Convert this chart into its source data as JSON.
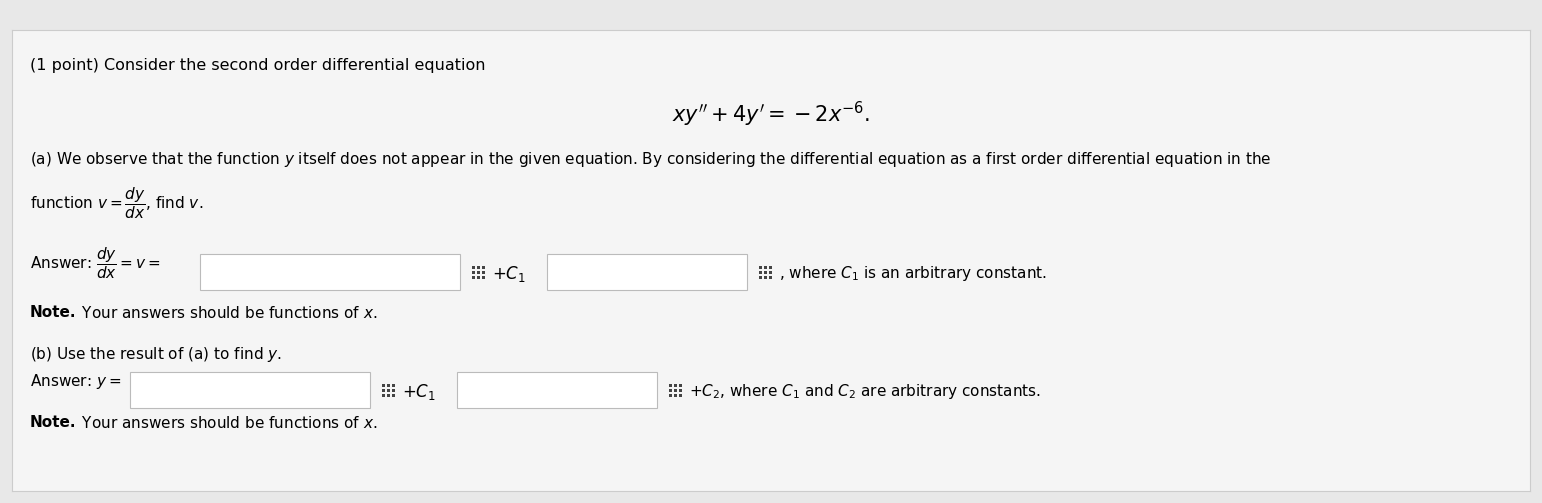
{
  "bg_color": "#e8e8e8",
  "panel_color": "#f5f5f5",
  "panel_border_color": "#cccccc",
  "text_color": "#000000",
  "input_box_color": "#ffffff",
  "input_box_border": "#bbbbbb",
  "grid_icon_color": "#444444",
  "title": "(1 point) Consider the second order differential equation",
  "main_eq": "$xy'' + 4y' = -2x^{-6}.$",
  "figwidth": 15.42,
  "figheight": 5.03,
  "dpi": 100
}
